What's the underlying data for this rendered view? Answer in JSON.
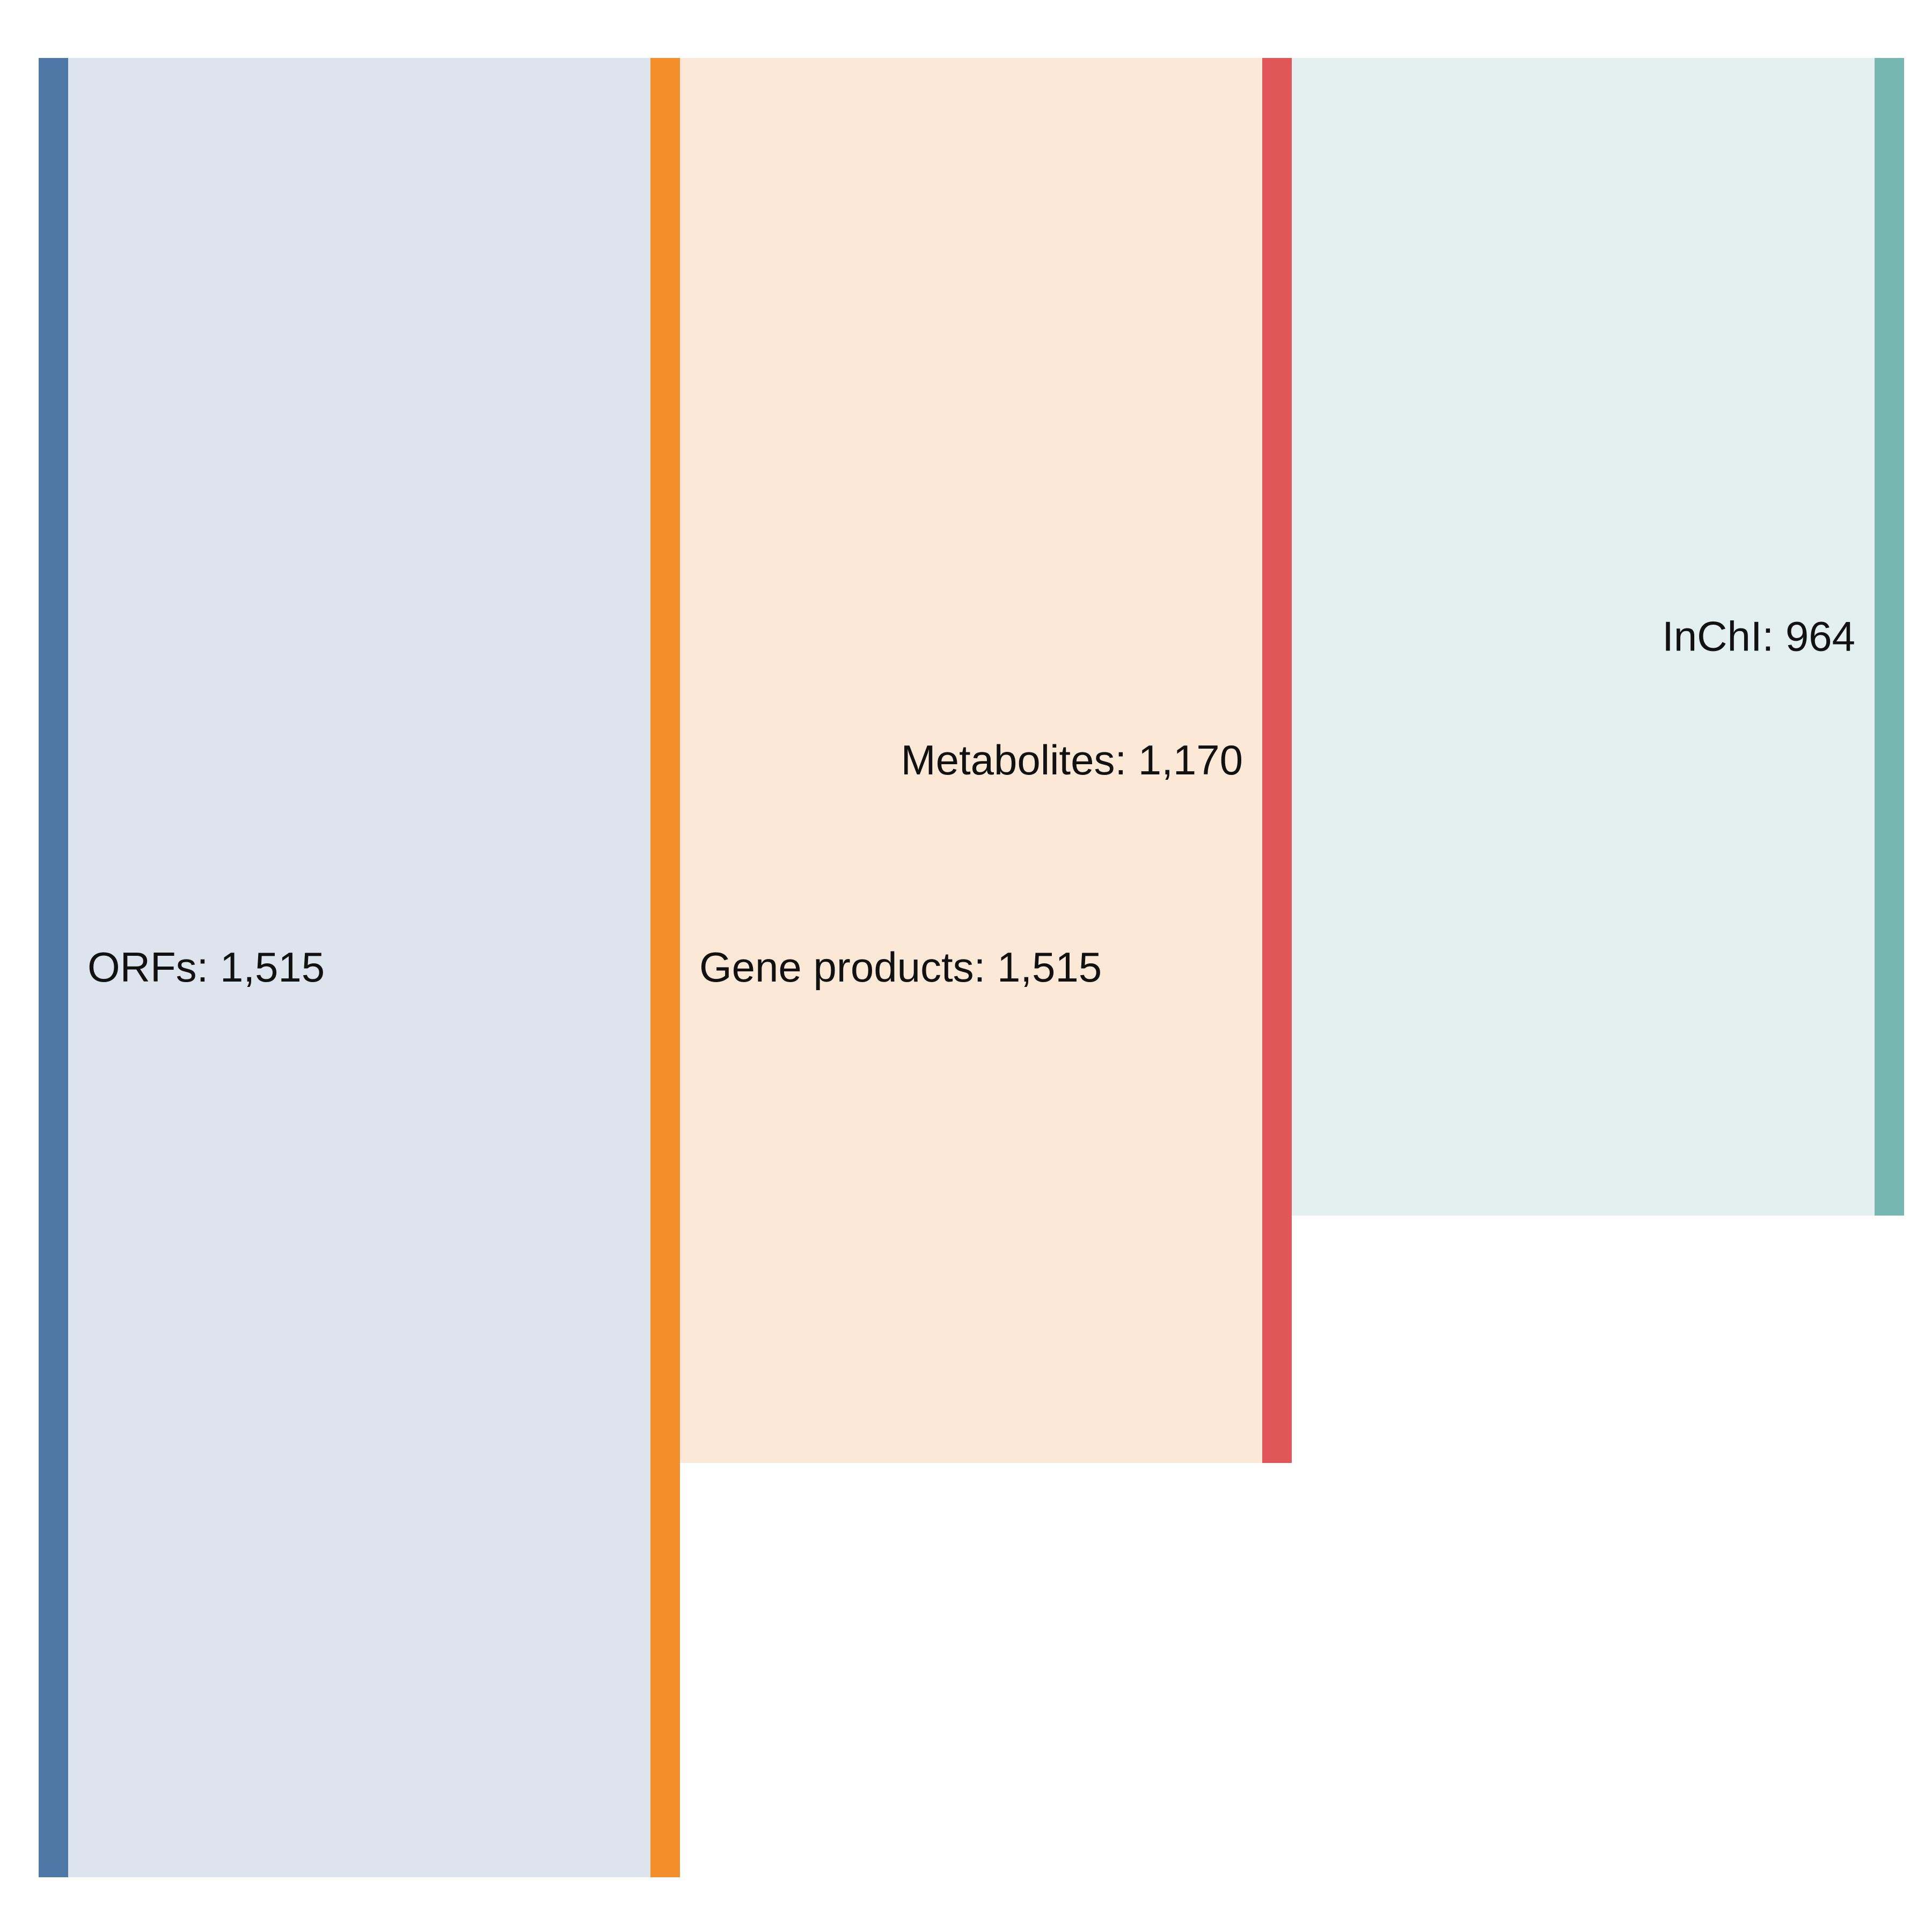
{
  "chart_data": {
    "type": "sankey",
    "nodes": [
      {
        "id": "orfs",
        "label": "ORFs: 1,515",
        "value": 1515,
        "color": "#4e79a7",
        "label_side": "right"
      },
      {
        "id": "gene-products",
        "label": "Gene products: 1,515",
        "value": 1515,
        "color": "#f28e2b",
        "label_side": "right"
      },
      {
        "id": "metabolites",
        "label": "Metabolites: 1,170",
        "value": 1170,
        "color": "#e15759",
        "label_side": "left"
      },
      {
        "id": "inchi",
        "label": "InChI: 964",
        "value": 964,
        "color": "#76b7b2",
        "label_side": "left"
      }
    ],
    "links": [
      {
        "source": "orfs",
        "target": "gene-products",
        "value": 1515,
        "color": "#dee4ed"
      },
      {
        "source": "gene-products",
        "target": "metabolites",
        "value": 1170,
        "color": "#fce8d6"
      },
      {
        "source": "metabolites",
        "target": "inchi",
        "value": 964,
        "color": "#e4f0f0"
      }
    ]
  }
}
